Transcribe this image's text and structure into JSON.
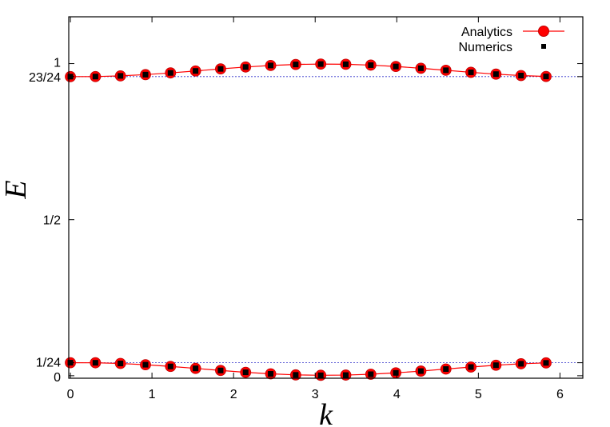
{
  "chart_data": {
    "type": "line",
    "title": "",
    "xlabel": "k",
    "ylabel": "E",
    "xlim": [
      -0.02,
      6.28
    ],
    "ylim": [
      -0.008,
      1.15
    ],
    "x_ticks": [
      0,
      1,
      2,
      3,
      4,
      5,
      6
    ],
    "x_tick_labels": [
      "0",
      "1",
      "2",
      "3",
      "4",
      "5",
      "6"
    ],
    "y_ticks": [
      0,
      0.041667,
      0.5,
      0.958333,
      1.0
    ],
    "y_tick_labels": [
      "0",
      "1/24",
      "1/2",
      "23/24",
      "1"
    ],
    "reference_lines": [
      0.041667,
      0.958333
    ],
    "grid": false,
    "legend_position": "top-right",
    "series": [
      {
        "name": "Analytics",
        "style": "line-with-circles",
        "color": "#ff0000",
        "x": [
          0,
          0.3068,
          0.6136,
          0.9204,
          1.2272,
          1.534,
          1.8408,
          2.1476,
          2.4544,
          2.7612,
          3.068,
          3.3748,
          3.6816,
          3.9884,
          4.2952,
          4.602,
          4.9088,
          5.2156,
          5.5224,
          5.8292
        ],
        "y": [
          0.9583,
          0.9585,
          0.9607,
          0.9647,
          0.9702,
          0.9765,
          0.9831,
          0.9891,
          0.994,
          0.9973,
          0.9986,
          0.9979,
          0.9952,
          0.9908,
          0.9851,
          0.9786,
          0.9721,
          0.9663,
          0.9617,
          0.9589
        ]
      },
      {
        "name": "Analytics",
        "style": "line-with-circles",
        "color": "#ff0000",
        "x": [
          0,
          0.3068,
          0.6136,
          0.9204,
          1.2272,
          1.534,
          1.8408,
          2.1476,
          2.4544,
          2.7612,
          3.068,
          3.3748,
          3.6816,
          3.9884,
          4.2952,
          4.602,
          4.9088,
          5.2156,
          5.5224,
          5.8292
        ],
        "y": [
          0.0417,
          0.0415,
          0.0393,
          0.0353,
          0.0298,
          0.0235,
          0.0169,
          0.0109,
          0.006,
          0.0027,
          0.0014,
          0.0021,
          0.0048,
          0.0092,
          0.0149,
          0.0214,
          0.0279,
          0.0337,
          0.0383,
          0.0411
        ]
      },
      {
        "name": "Numerics",
        "style": "points",
        "color": "#000000",
        "x": [
          0,
          0.3068,
          0.6136,
          0.9204,
          1.2272,
          1.534,
          1.8408,
          2.1476,
          2.4544,
          2.7612,
          3.068,
          3.3748,
          3.6816,
          3.9884,
          4.2952,
          4.602,
          4.9088,
          5.2156,
          5.5224,
          5.8292,
          0,
          0.3068,
          0.6136,
          0.9204,
          1.2272,
          1.534,
          1.8408,
          2.1476,
          2.4544,
          2.7612,
          3.068,
          3.3748,
          3.6816,
          3.9884,
          4.2952,
          4.602,
          4.9088,
          5.2156,
          5.5224,
          5.8292
        ],
        "y": [
          0.9583,
          0.9585,
          0.9607,
          0.9647,
          0.9702,
          0.9765,
          0.9831,
          0.9891,
          0.994,
          0.9973,
          0.9986,
          0.9979,
          0.9952,
          0.9908,
          0.9851,
          0.9786,
          0.9721,
          0.9663,
          0.9617,
          0.9589,
          0.0417,
          0.0415,
          0.0393,
          0.0353,
          0.0298,
          0.0235,
          0.0169,
          0.0109,
          0.006,
          0.0027,
          0.0014,
          0.0021,
          0.0048,
          0.0092,
          0.0149,
          0.0214,
          0.0279,
          0.0337,
          0.0383,
          0.0411
        ]
      }
    ],
    "legend": [
      {
        "label": "Analytics",
        "style": "line-with-circles",
        "color": "#ff0000"
      },
      {
        "label": "Numerics",
        "style": "points",
        "color": "#000000"
      }
    ],
    "colors": {
      "analytics": "#ff0000",
      "analytics_edge": "#c00000",
      "numerics": "#000000",
      "reference": "#3333cc",
      "axis": "#000000"
    }
  }
}
